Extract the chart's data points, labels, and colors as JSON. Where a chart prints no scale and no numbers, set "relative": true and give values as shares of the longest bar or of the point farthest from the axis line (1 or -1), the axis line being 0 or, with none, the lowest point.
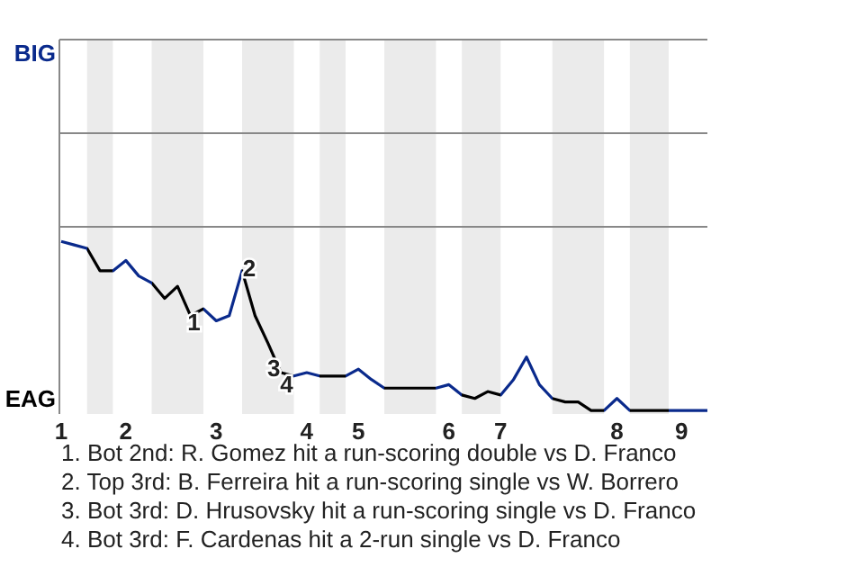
{
  "chart_data": {
    "type": "line",
    "relative": true,
    "marker": "none",
    "line_style": "solid",
    "categories": [
      "1",
      null,
      null,
      null,
      null,
      "2",
      null,
      null,
      null,
      null,
      null,
      null,
      "3",
      null,
      null,
      null,
      null,
      null,
      null,
      "4",
      null,
      null,
      null,
      "5",
      null,
      null,
      null,
      null,
      null,
      null,
      "6",
      null,
      null,
      null,
      "7",
      null,
      null,
      null,
      null,
      null,
      null,
      null,
      null,
      "8",
      null,
      null,
      null,
      null,
      "9",
      null,
      null
    ],
    "series": [
      {
        "color": "#0a2a8c",
        "values": [
          1,
          0.98,
          0.96,
          0.83,
          0.83,
          0.89,
          0.8,
          0.76,
          0.67,
          0.74,
          0.57,
          0.61,
          0.54,
          0.57,
          0.83,
          0.57,
          0.41,
          0.24,
          0.22,
          0.24,
          0.22,
          0.22,
          0.22,
          0.26,
          0.2,
          0.15,
          0.15,
          0.15,
          0.15,
          0.15,
          0.17,
          0.11,
          0.09,
          0.13,
          0.11,
          0.2,
          0.33,
          0.17,
          0.09,
          0.07,
          0.07,
          0.02,
          0.02,
          0.09,
          0.02,
          0.02,
          0.02,
          0.02,
          0.02,
          0.02,
          0.02
        ],
        "colors": [
          "#0a2a8c",
          "#0a2a8c",
          "#000000",
          "#000000",
          "#0a2a8c",
          "#0a2a8c",
          "#0a2a8c",
          "#000000",
          "#000000",
          "#000000",
          "#000000",
          "#0a2a8c",
          "#0a2a8c",
          "#0a2a8c",
          "#000000",
          "#000000",
          "#000000",
          "#000000",
          "#0a2a8c",
          "#0a2a8c",
          "#000000",
          "#000000",
          "#0a2a8c",
          "#0a2a8c",
          "#0a2a8c",
          "#000000",
          "#000000",
          "#000000",
          "#000000",
          "#0a2a8c",
          "#0a2a8c",
          "#000000",
          "#000000",
          "#000000",
          "#0a2a8c",
          "#0a2a8c",
          "#0a2a8c",
          "#0a2a8c",
          "#000000",
          "#000000",
          "#000000",
          "#000000",
          "#0a2a8c",
          "#0a2a8c",
          "#000000",
          "#000000",
          "#000000",
          "#0a2a8c",
          "#0a2a8c",
          "#0a2a8c",
          "#0a2a8c"
        ]
      }
    ],
    "annotations": [
      "BIG",
      "EAG",
      {
        "text": "1",
        "y": 0.57
      },
      {
        "text": "2",
        "y": 0.83
      },
      {
        "text": "3",
        "y": 0.24
      },
      {
        "text": "4",
        "y": 0.22
      },
      "1. Bot 2nd: R. Gomez hit a run-scoring double vs D. Franco",
      "2. Top 3rd: B. Ferreira hit a run-scoring single vs W. Borrero",
      "3. Bot 3rd: D. Hrusovsky hit a run-scoring single vs D. Franco",
      "4. Bot 3rd: F. Cardenas hit a 2-run single vs D. Franco"
    ]
  }
}
